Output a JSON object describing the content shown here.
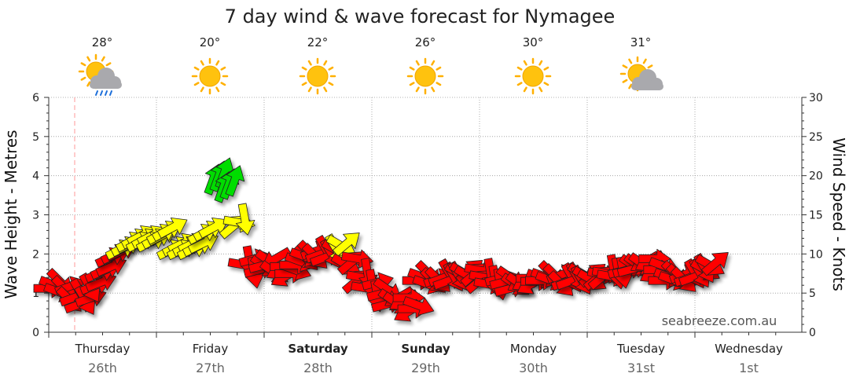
{
  "chart_data": {
    "type": "line",
    "title": "7 day wind & wave forecast for Nymagee",
    "ylabel_left": "Wave Height - Metres",
    "ylabel_right": "Wind Speed - Knots",
    "ylim_left": [
      0,
      6
    ],
    "ylim_right": [
      0,
      30
    ],
    "left_ticks": [
      "0",
      "1",
      "2",
      "3",
      "4",
      "5",
      "6"
    ],
    "right_ticks": [
      "0",
      "5",
      "10",
      "15",
      "20",
      "25",
      "30"
    ],
    "grid": true,
    "watermark": "seabreeze.com.au",
    "days": [
      {
        "day": "Thursday",
        "date": "26th",
        "bold": false
      },
      {
        "day": "Friday",
        "date": "27th",
        "bold": false
      },
      {
        "day": "Saturday",
        "date": "28th",
        "bold": true
      },
      {
        "day": "Sunday",
        "date": "29th",
        "bold": true
      },
      {
        "day": "Monday",
        "date": "30th",
        "bold": false
      },
      {
        "day": "Tuesday",
        "date": "31st",
        "bold": false
      },
      {
        "day": "Wednesday",
        "date": "1st",
        "bold": false
      }
    ],
    "temperatures": [
      "28°",
      "20°",
      "22°",
      "26°",
      "30°",
      "31°"
    ],
    "weather_icons": [
      "sun-cloud-rain-icon",
      "sun-icon",
      "sun-icon",
      "sun-icon",
      "sun-icon",
      "sun-cloud-icon"
    ],
    "wind_speed_knots": [
      6,
      5.5,
      4.5,
      4,
      6,
      8,
      10,
      11,
      12,
      12,
      12,
      13,
      11,
      11,
      11,
      13,
      20,
      19,
      14,
      9,
      8,
      9,
      8,
      7.5,
      9,
      10,
      10,
      10,
      11,
      9,
      7,
      6,
      5,
      4,
      4,
      3,
      7,
      6.5,
      7,
      7,
      7.5,
      7.5,
      7,
      6.5,
      6.5,
      6,
      6.5,
      6.5,
      7,
      7,
      6.5,
      7,
      7,
      7,
      7.5,
      7.5,
      8,
      8.5,
      9,
      8,
      7,
      7,
      7,
      7.5,
      8.5
    ],
    "wind_colors": {
      "light": "#ff0000",
      "moderate": "#ffff00",
      "strong": "#00dd00"
    },
    "now_marker_color": "#ff9999"
  }
}
